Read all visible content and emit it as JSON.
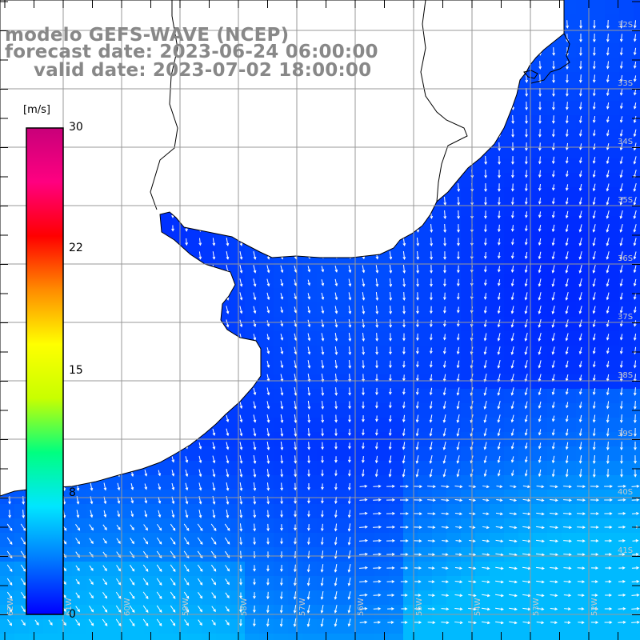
{
  "title": {
    "model": "modelo GEFS-WAVE (NCEP)",
    "forecast": "forecast date: 2023-06-24 06:00:00",
    "valid": "valid date: 2023-07-02 18:00:00"
  },
  "colorbar": {
    "unit": "[m/s]",
    "ticks": [
      "30",
      "22",
      "15",
      "8",
      "0"
    ],
    "tick_values": [
      30,
      22,
      15,
      8,
      0
    ],
    "min": 0,
    "max": 30,
    "colors": [
      "#0000ff",
      "#0078ff",
      "#00e6ff",
      "#00ff80",
      "#c8ff00",
      "#ffff00",
      "#ff8c00",
      "#ff0000",
      "#ff0080",
      "#c8007a"
    ]
  },
  "map": {
    "variable": "wind speed and direction",
    "lat_labels": [
      "32S",
      "33S",
      "34S",
      "35S",
      "36S",
      "37S",
      "38S",
      "39S",
      "40S",
      "41S"
    ],
    "lon_labels": [
      "62W",
      "61W",
      "60W",
      "59W",
      "58W",
      "57W",
      "56W",
      "55W",
      "54W",
      "53W",
      "52W"
    ],
    "colors": {
      "land": "#ffffff",
      "coastline": "#000000",
      "grid": "#999999",
      "arrows": "#ffffff"
    },
    "prevailing_wind": "south to south-southwest"
  }
}
